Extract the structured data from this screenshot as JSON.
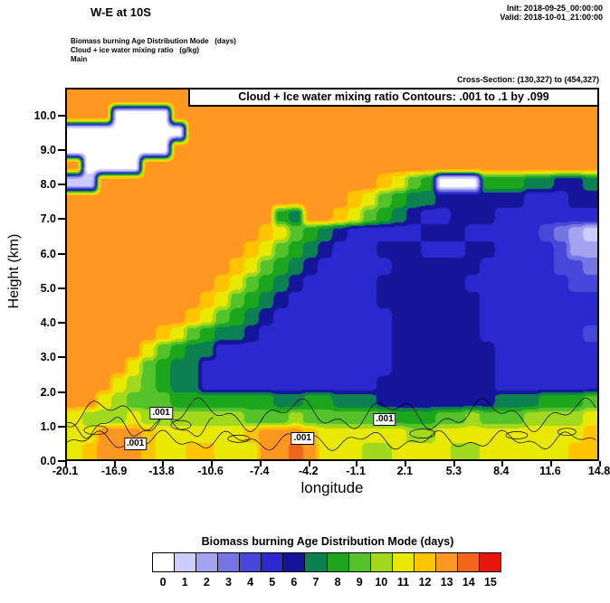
{
  "header": {
    "title": "W-E at 10S",
    "init": "Init: 2018-09-25_00:00:00",
    "valid": "Valid: 2018-10-01_21:00:00",
    "field1": "Biomass burning Age Distribution Mode   (days)",
    "field2": "Cloud + ice water mixing ratio   (g/kg)",
    "field3": "Main",
    "cross_section": "Cross-Section: (130,327) to (454,327)"
  },
  "plot": {
    "contour_note": "Cloud + Ice water mixing ratio Contours: .001 to .1 by .099",
    "xlabel": "longitude",
    "ylabel": "Height (km)"
  },
  "colorbar": {
    "title": "Biomass burning Age Distribution Mode  (days)",
    "labels": [
      "0",
      "1",
      "2",
      "3",
      "4",
      "5",
      "6",
      "7",
      "8",
      "9",
      "10",
      "11",
      "12",
      "13",
      "14",
      "15"
    ]
  },
  "chart_data": {
    "type": "heatmap",
    "title": "Biomass burning Age Distribution Mode (days) with Cloud + Ice water mixing ratio contours, W-E cross-section at 10S",
    "xlabel": "longitude",
    "ylabel": "Height (km)",
    "xlim": [
      -20.1,
      14.8
    ],
    "ylim": [
      0,
      10.8
    ],
    "xticks": [
      "-20.1",
      "-16.9",
      "-13.8",
      "-10.6",
      "-7.4",
      "-4.2",
      "-1.1",
      "2.1",
      "5.3",
      "8.4",
      "11.6",
      "14.8"
    ],
    "yticks": [
      "0.0",
      "1.0",
      "2.0",
      "3.0",
      "4.0",
      "5.0",
      "6.0",
      "7.0",
      "8.0",
      "9.0",
      "10.0"
    ],
    "value_labels": [
      "0",
      "1",
      "2",
      "3",
      "4",
      "5",
      "6",
      "7",
      "8",
      "9",
      "10",
      "11",
      "12",
      "13",
      "14",
      "15"
    ],
    "colors": [
      "#ffffff",
      "#ccccff",
      "#a3a3f2",
      "#7575e5",
      "#4848d8",
      "#2929cf",
      "#15159a",
      "#0d8052",
      "#1ca61c",
      "#53c22b",
      "#a0d91e",
      "#e9e900",
      "#ffc400",
      "#ff9721",
      "#f2661c",
      "#e3170d"
    ],
    "grid_encoding": "rows top(10.8km) to bottom(0km), 36 columns spanning lon -20.1 to 14.8; one hex digit per cell = age mode in days (0-15)",
    "grid": [
      "dddddddddddddddddddddddddddddddddddd",
      "ddd0000ddddddddddddddddddddddddddddd",
      "00000000dddddddddddddddddddddddddddd",
      "0000000ddddddddddddddddddddddddddddd",
      "d0000ddddddddddddddddddddddddddddddd",
      "11dddddddddddddddddddcb9800088877667",
      "dddddddddddddddddddcb987766666655566",
      "dddddddddddddd87ddcb9876556665555555",
      "dddddddddddddcb987655555666555554321",
      "ddddddddddddcb9876555666555665555422",
      "dddddddddddcb98765555566666655555443",
      "ddddddddddcb987655555666666555555544",
      "dddddddddcb9876555555666666655555555",
      "ddddddddcb98765555555566666655555555",
      "ddddddcb9877655555555566666655555554",
      "dddddb987755555555555566666665555555",
      "ddddb9877555555555555566666665555555",
      "dddba9877555555555555666666665555555",
      "ddba99988888887788777666666667778889",
      "baaabaaaaaaa999a99999988899a999aaaab",
      "bbdddcbbbbbbcdddcbbbbbbaabbbbbbbbbbc",
      "bcdddcbbccbbbddedbbbaabbbbaabbbbbbcc"
    ],
    "contour_overlay": {
      "contour_value": ".001",
      "labels": [
        {
          "text": ".001",
          "lon": -13.9,
          "km": 1.35
        },
        {
          "text": ".001",
          "lon": -15.6,
          "km": 0.45
        },
        {
          "text": ".001",
          "lon": -4.6,
          "km": 0.6
        },
        {
          "text": ".001",
          "lon": 0.8,
          "km": 1.15
        }
      ]
    }
  }
}
